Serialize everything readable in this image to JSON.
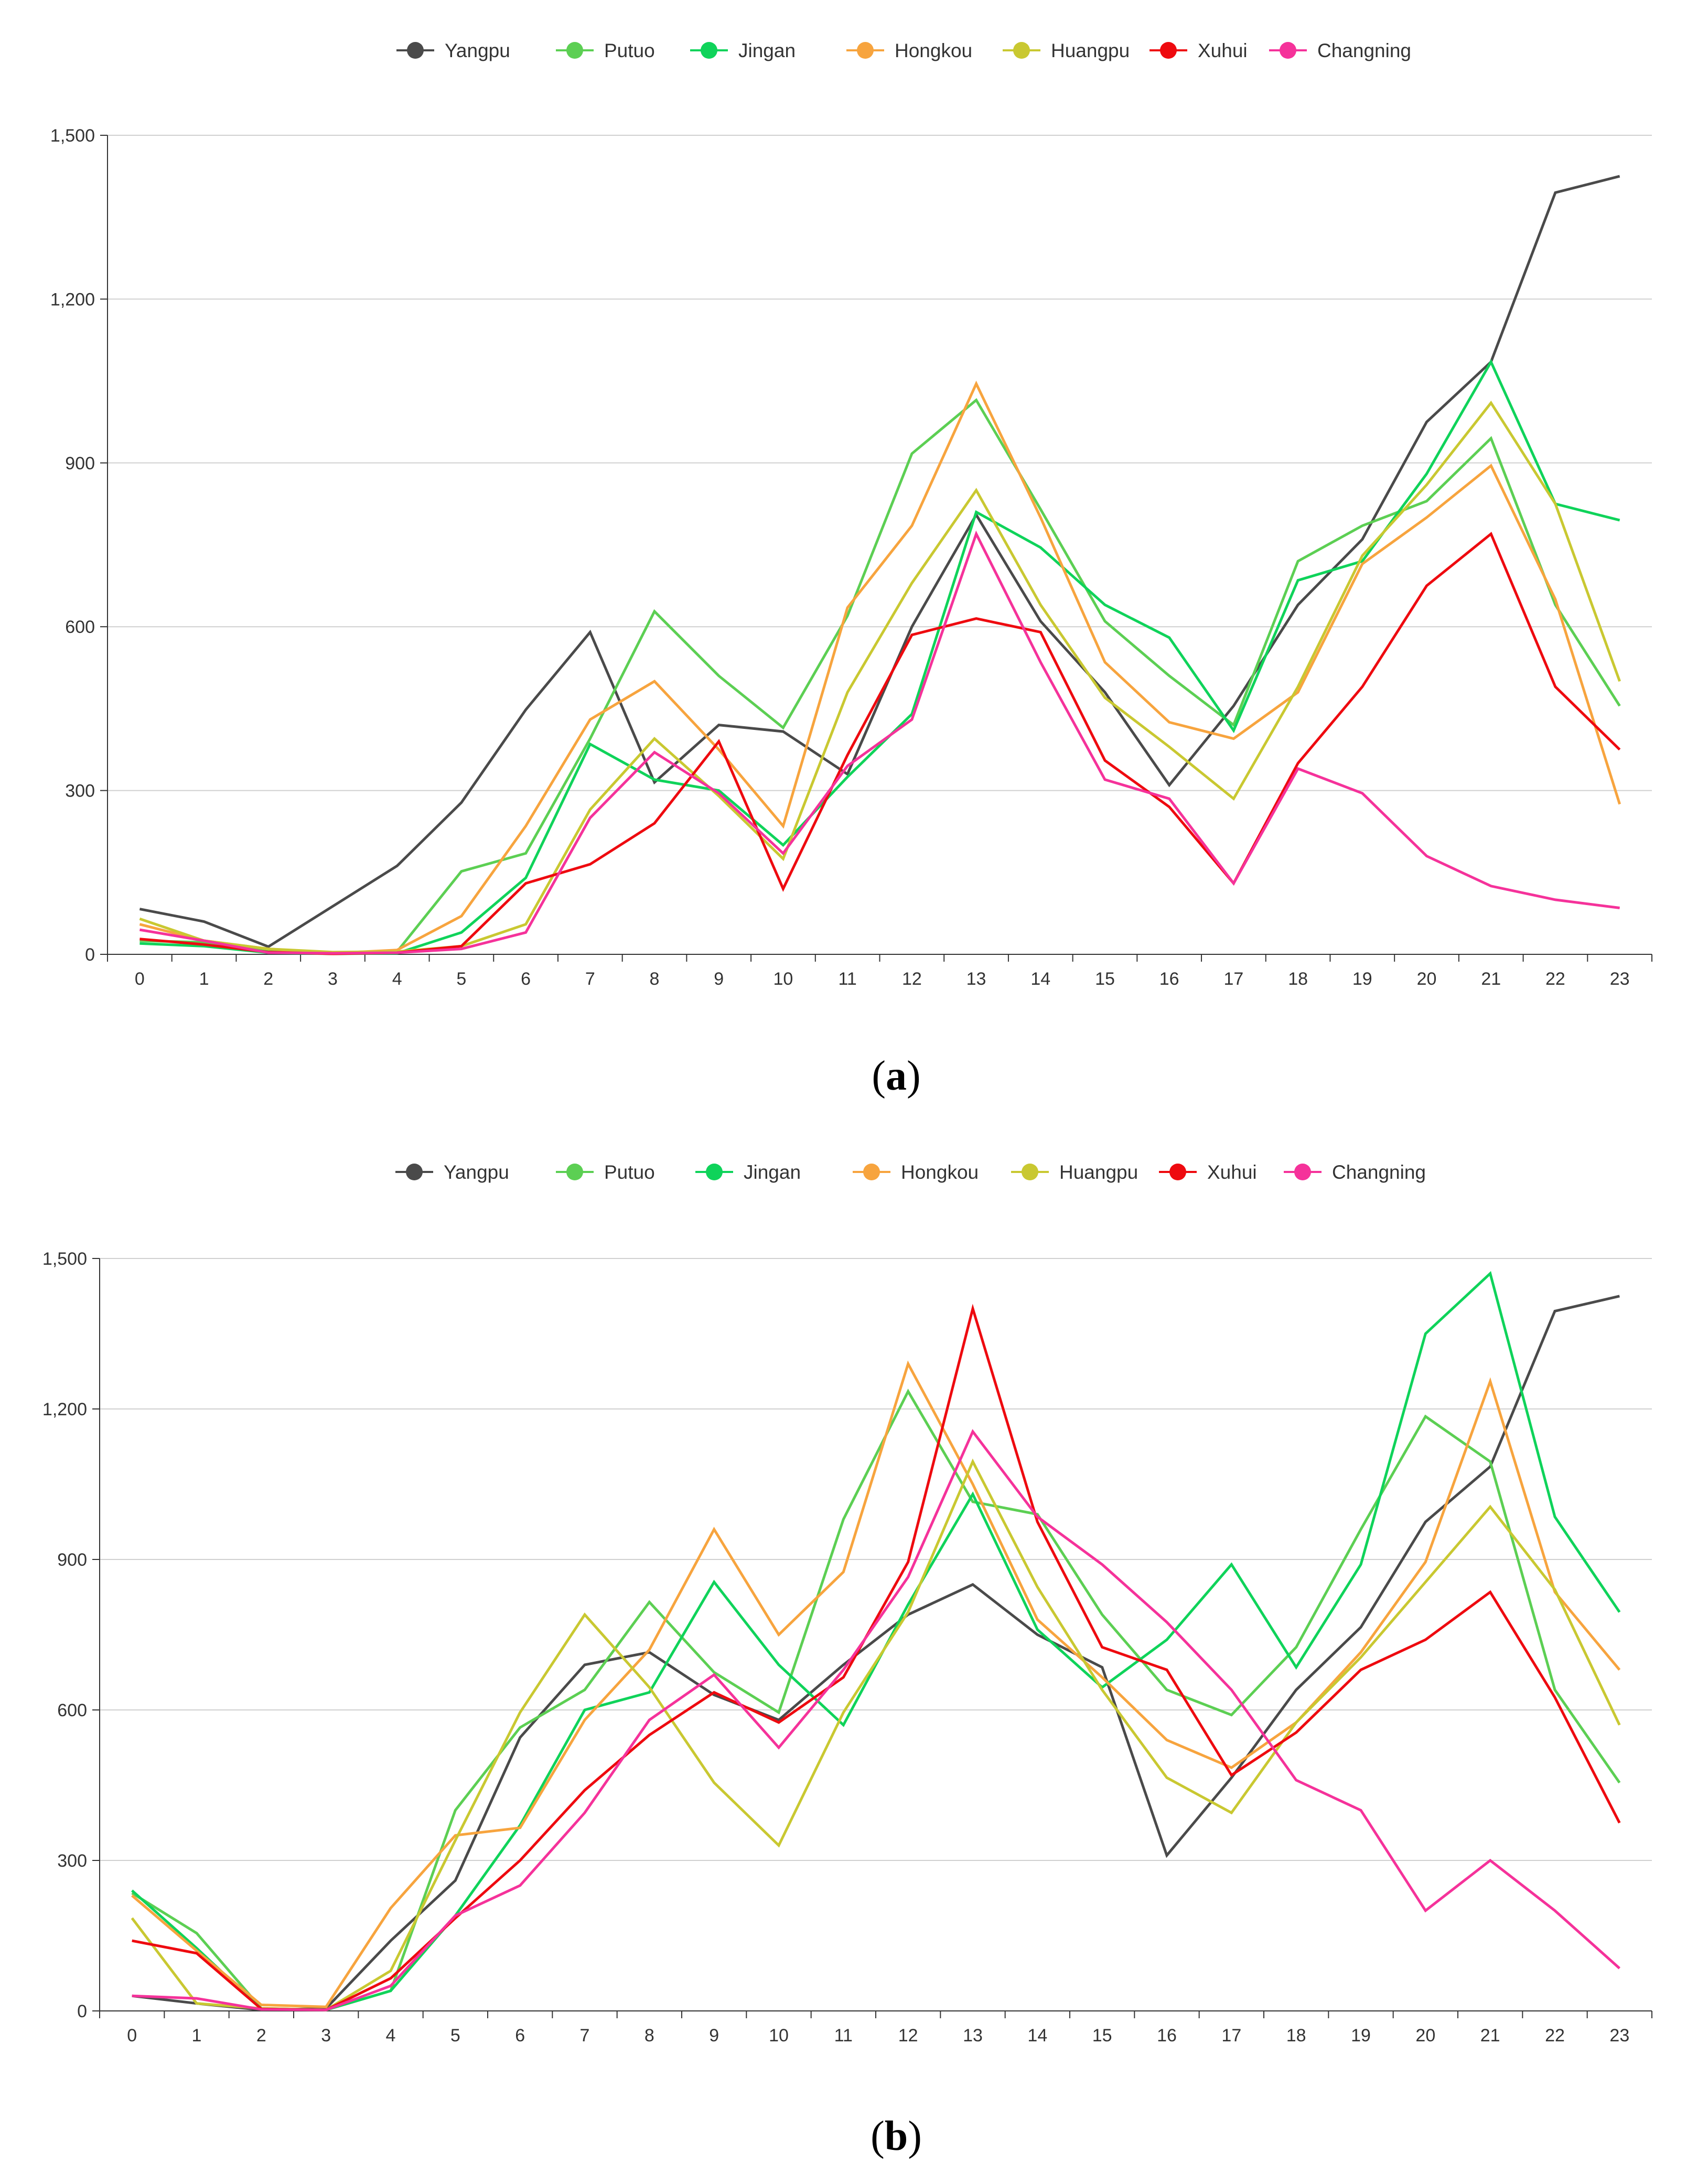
{
  "figure_captions": [
    "a",
    "b"
  ],
  "chart_data": [
    {
      "type": "line",
      "caption": "a",
      "x": [
        0,
        1,
        2,
        3,
        4,
        5,
        6,
        7,
        8,
        9,
        10,
        11,
        12,
        13,
        14,
        15,
        16,
        17,
        18,
        19,
        20,
        21,
        22,
        23
      ],
      "ylim": [
        0,
        1500
      ],
      "yticks": [
        0,
        300,
        600,
        900,
        1200,
        1500
      ],
      "ytick_labels": [
        "0",
        "300",
        "600",
        "900",
        "1,200",
        "1,500"
      ],
      "xtick_labels": [
        "0",
        "1",
        "2",
        "3",
        "4",
        "5",
        "6",
        "7",
        "8",
        "9",
        "10",
        "11",
        "12",
        "13",
        "14",
        "15",
        "16",
        "17",
        "18",
        "19",
        "20",
        "21",
        "22",
        "23"
      ],
      "grid": true,
      "legend_position": "top-center",
      "series": [
        {
          "name": "Yangpu",
          "color": "#4a4a4a",
          "values": [
            83,
            60,
            14,
            88,
            162,
            278,
            448,
            590,
            315,
            420,
            408,
            330,
            600,
            805,
            610,
            480,
            310,
            455,
            640,
            760,
            975,
            1085,
            1395,
            1425
          ]
        },
        {
          "name": "Putuo",
          "color": "#5ccf53",
          "values": [
            25,
            22,
            5,
            2,
            5,
            152,
            185,
            395,
            628,
            510,
            415,
            620,
            917,
            1015,
            815,
            610,
            510,
            420,
            720,
            785,
            830,
            945,
            640,
            455
          ]
        },
        {
          "name": "Jingan",
          "color": "#0fd35a",
          "values": [
            20,
            15,
            3,
            1,
            2,
            40,
            140,
            385,
            320,
            300,
            200,
            325,
            440,
            810,
            745,
            640,
            580,
            410,
            685,
            720,
            880,
            1085,
            825,
            795
          ]
        },
        {
          "name": "Hongkou",
          "color": "#f7a43e",
          "values": [
            55,
            25,
            10,
            2,
            8,
            70,
            235,
            430,
            500,
            375,
            235,
            635,
            785,
            1045,
            800,
            535,
            425,
            395,
            480,
            715,
            800,
            895,
            650,
            275
          ]
        },
        {
          "name": "Huangpu",
          "color": "#c9c831",
          "values": [
            65,
            25,
            10,
            4,
            5,
            15,
            55,
            265,
            395,
            290,
            175,
            480,
            680,
            850,
            640,
            470,
            380,
            285,
            490,
            730,
            860,
            1010,
            825,
            500
          ]
        },
        {
          "name": "Xuhui",
          "color": "#ee0a0f",
          "values": [
            28,
            18,
            4,
            1,
            3,
            15,
            130,
            165,
            240,
            390,
            120,
            365,
            585,
            615,
            590,
            355,
            270,
            130,
            350,
            490,
            675,
            770,
            490,
            375
          ]
        },
        {
          "name": "Changning",
          "color": "#f5329a",
          "values": [
            45,
            25,
            3,
            2,
            3,
            10,
            40,
            250,
            370,
            295,
            185,
            345,
            430,
            770,
            535,
            320,
            285,
            130,
            340,
            295,
            180,
            125,
            100,
            85
          ]
        }
      ]
    },
    {
      "type": "line",
      "caption": "b",
      "x": [
        0,
        1,
        2,
        3,
        4,
        5,
        6,
        7,
        8,
        9,
        10,
        11,
        12,
        13,
        14,
        15,
        16,
        17,
        18,
        19,
        20,
        21,
        22,
        23
      ],
      "ylim": [
        0,
        1500
      ],
      "yticks": [
        0,
        300,
        600,
        900,
        1200,
        1500
      ],
      "ytick_labels": [
        "0",
        "300",
        "600",
        "900",
        "1,200",
        "1,500"
      ],
      "xtick_labels": [
        "0",
        "1",
        "2",
        "3",
        "4",
        "5",
        "6",
        "7",
        "8",
        "9",
        "10",
        "11",
        "12",
        "13",
        "14",
        "15",
        "16",
        "17",
        "18",
        "19",
        "20",
        "21",
        "22",
        "23"
      ],
      "grid": true,
      "legend_position": "top-center",
      "series": [
        {
          "name": "Yangpu",
          "color": "#4a4a4a",
          "values": [
            30,
            15,
            2,
            5,
            140,
            260,
            545,
            690,
            715,
            630,
            580,
            690,
            790,
            850,
            750,
            685,
            310,
            465,
            640,
            765,
            975,
            1085,
            1395,
            1425
          ]
        },
        {
          "name": "Putuo",
          "color": "#5ccf53",
          "values": [
            235,
            155,
            5,
            2,
            40,
            400,
            565,
            640,
            815,
            675,
            595,
            980,
            1235,
            1015,
            990,
            790,
            640,
            590,
            725,
            960,
            1185,
            1095,
            640,
            455
          ]
        },
        {
          "name": "Jingan",
          "color": "#0fd35a",
          "values": [
            240,
            125,
            4,
            2,
            40,
            190,
            370,
            600,
            635,
            855,
            690,
            570,
            810,
            1030,
            760,
            645,
            740,
            890,
            685,
            890,
            1350,
            1470,
            985,
            795
          ]
        },
        {
          "name": "Hongkou",
          "color": "#f7a43e",
          "values": [
            230,
            120,
            12,
            8,
            205,
            350,
            365,
            580,
            720,
            960,
            750,
            875,
            1290,
            1050,
            780,
            665,
            540,
            485,
            575,
            715,
            895,
            1255,
            835,
            680
          ]
        },
        {
          "name": "Huangpu",
          "color": "#c9c831",
          "values": [
            185,
            15,
            5,
            2,
            80,
            340,
            595,
            790,
            645,
            455,
            330,
            595,
            795,
            1095,
            845,
            640,
            465,
            395,
            575,
            705,
            855,
            1005,
            840,
            570
          ]
        },
        {
          "name": "Xuhui",
          "color": "#ee0a0f",
          "values": [
            140,
            115,
            4,
            2,
            65,
            185,
            300,
            440,
            550,
            635,
            575,
            665,
            895,
            1400,
            975,
            725,
            680,
            470,
            555,
            680,
            740,
            835,
            625,
            375
          ]
        },
        {
          "name": "Changning",
          "color": "#f5329a",
          "values": [
            30,
            25,
            3,
            2,
            50,
            190,
            250,
            395,
            580,
            670,
            525,
            680,
            865,
            1155,
            985,
            890,
            775,
            640,
            460,
            400,
            200,
            300,
            200,
            85
          ]
        }
      ]
    }
  ]
}
